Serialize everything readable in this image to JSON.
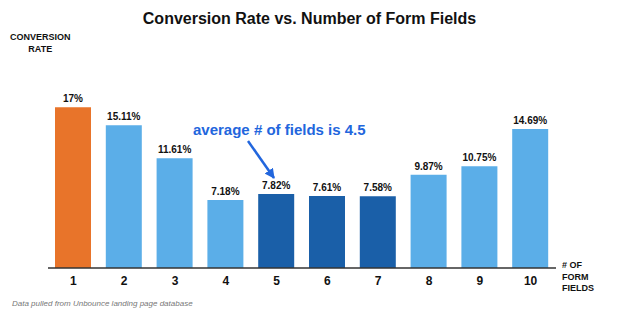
{
  "chart_data": {
    "type": "bar",
    "title": "Conversion Rate vs. Number of Form Fields",
    "ylabel": "CONVERSION\nRATE",
    "xlabel": "# OF\nFORM\nFIELDS",
    "categories": [
      1,
      2,
      3,
      4,
      5,
      6,
      7,
      8,
      9,
      10
    ],
    "values": [
      17.0,
      15.11,
      11.61,
      7.18,
      7.82,
      7.61,
      7.58,
      9.87,
      10.75,
      14.69
    ],
    "value_labels": [
      "17%",
      "15.11%",
      "11.61%",
      "7.18%",
      "7.82%",
      "7.61%",
      "7.58%",
      "9.87%",
      "10.75%",
      "14.69%"
    ],
    "data_labels": true,
    "colors": [
      "#E8742A",
      "#5BAEE8",
      "#5BAEE8",
      "#5BAEE8",
      "#1A5FA8",
      "#1A5FA8",
      "#1A5FA8",
      "#5BAEE8",
      "#5BAEE8",
      "#5BAEE8"
    ],
    "ylim": [
      0,
      22
    ],
    "tick_labels": "x",
    "grid": false,
    "annotations": [
      {
        "text": "average # of fields is 4.5",
        "color": "#2266DD"
      }
    ],
    "footnote": "Data pulled from Unbounce landing page database"
  }
}
